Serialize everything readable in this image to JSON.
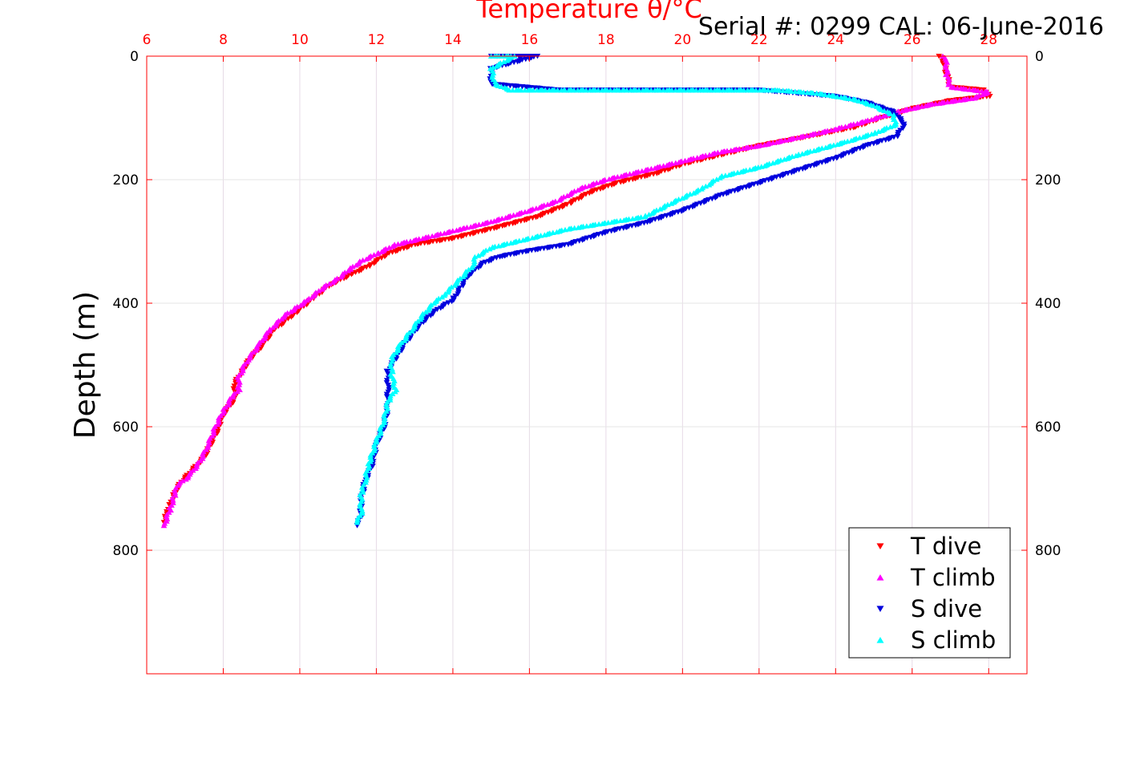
{
  "chart_data": {
    "type": "scatter",
    "title": "Temperature θ/°C",
    "annotation": "Serial #: 0299 CAL: 06-June-2016",
    "xlabel": "Temperature θ/°C",
    "ylabel": "Depth (m)",
    "xlim": [
      6,
      29
    ],
    "ylim": [
      0,
      1000
    ],
    "y_reversed": true,
    "x_ticks": [
      "6",
      "8",
      "10",
      "12",
      "14",
      "16",
      "18",
      "20",
      "22",
      "24",
      "26",
      "28"
    ],
    "y_ticks": [
      "0",
      "200",
      "400",
      "600",
      "800"
    ],
    "grid": true,
    "legend_position": "bottom-right",
    "series": [
      {
        "name": "T dive",
        "marker": "triangle-down",
        "color": "#ff0000",
        "points": [
          [
            26.7,
            0
          ],
          [
            26.8,
            5
          ],
          [
            26.9,
            30
          ],
          [
            27.0,
            50
          ],
          [
            27.9,
            55
          ],
          [
            28.0,
            65
          ],
          [
            27.0,
            72
          ],
          [
            26.0,
            85
          ],
          [
            25.2,
            100
          ],
          [
            24.5,
            115
          ],
          [
            23.3,
            130
          ],
          [
            22.0,
            145
          ],
          [
            21.0,
            160
          ],
          [
            20.0,
            175
          ],
          [
            19.3,
            190
          ],
          [
            18.3,
            205
          ],
          [
            17.6,
            220
          ],
          [
            17.0,
            240
          ],
          [
            16.2,
            260
          ],
          [
            15.3,
            275
          ],
          [
            14.0,
            295
          ],
          [
            13.0,
            305
          ],
          [
            12.3,
            320
          ],
          [
            11.8,
            340
          ],
          [
            11.3,
            355
          ],
          [
            10.8,
            370
          ],
          [
            10.3,
            395
          ],
          [
            9.8,
            420
          ],
          [
            9.3,
            445
          ],
          [
            9.0,
            470
          ],
          [
            8.7,
            490
          ],
          [
            8.5,
            510
          ],
          [
            8.3,
            530
          ],
          [
            8.3,
            555
          ],
          [
            8.0,
            580
          ],
          [
            7.9,
            600
          ],
          [
            7.7,
            625
          ],
          [
            7.5,
            650
          ],
          [
            7.2,
            670
          ],
          [
            6.9,
            690
          ],
          [
            6.7,
            710
          ],
          [
            6.6,
            730
          ],
          [
            6.5,
            745
          ],
          [
            6.45,
            755
          ]
        ]
      },
      {
        "name": "T climb",
        "marker": "triangle-up",
        "color": "#ff00ff",
        "points": [
          [
            26.8,
            0
          ],
          [
            26.9,
            10
          ],
          [
            26.9,
            30
          ],
          [
            27.0,
            50
          ],
          [
            28.0,
            58
          ],
          [
            27.6,
            68
          ],
          [
            26.5,
            78
          ],
          [
            25.6,
            90
          ],
          [
            24.8,
            105
          ],
          [
            24.0,
            118
          ],
          [
            23.0,
            132
          ],
          [
            22.0,
            145
          ],
          [
            21.0,
            155
          ],
          [
            20.0,
            170
          ],
          [
            19.0,
            185
          ],
          [
            18.0,
            200
          ],
          [
            17.3,
            215
          ],
          [
            16.7,
            235
          ],
          [
            16.0,
            250
          ],
          [
            15.0,
            268
          ],
          [
            14.2,
            280
          ],
          [
            13.2,
            295
          ],
          [
            12.5,
            305
          ],
          [
            12.0,
            320
          ],
          [
            11.6,
            332
          ],
          [
            11.3,
            345
          ],
          [
            11.0,
            360
          ],
          [
            10.6,
            375
          ],
          [
            10.2,
            395
          ],
          [
            9.6,
            420
          ],
          [
            9.2,
            445
          ],
          [
            8.9,
            470
          ],
          [
            8.6,
            495
          ],
          [
            8.4,
            520
          ],
          [
            8.4,
            540
          ],
          [
            8.2,
            555
          ],
          [
            8.0,
            575
          ],
          [
            7.8,
            600
          ],
          [
            7.6,
            630
          ],
          [
            7.4,
            655
          ],
          [
            7.1,
            680
          ],
          [
            6.8,
            695
          ],
          [
            6.7,
            715
          ],
          [
            6.6,
            735
          ],
          [
            6.45,
            760
          ]
        ]
      },
      {
        "name": "S dive",
        "marker": "triangle-down",
        "color": "#0000dd",
        "points": [
          [
            15.0,
            0
          ],
          [
            16.2,
            0
          ],
          [
            15.0,
            20
          ],
          [
            15.0,
            45
          ],
          [
            16.8,
            55
          ],
          [
            18.0,
            55
          ],
          [
            20.5,
            55
          ],
          [
            22.0,
            55
          ],
          [
            24.0,
            65
          ],
          [
            24.8,
            75
          ],
          [
            25.5,
            90
          ],
          [
            25.8,
            110
          ],
          [
            25.6,
            130
          ],
          [
            24.8,
            145
          ],
          [
            24.0,
            165
          ],
          [
            23.0,
            185
          ],
          [
            22.0,
            205
          ],
          [
            21.0,
            225
          ],
          [
            20.0,
            250
          ],
          [
            19.0,
            270
          ],
          [
            18.0,
            285
          ],
          [
            17.0,
            305
          ],
          [
            16.0,
            315
          ],
          [
            15.2,
            325
          ],
          [
            14.8,
            335
          ],
          [
            14.4,
            355
          ],
          [
            14.2,
            375
          ],
          [
            14.0,
            395
          ],
          [
            13.6,
            410
          ],
          [
            13.3,
            425
          ],
          [
            13.0,
            445
          ],
          [
            12.7,
            470
          ],
          [
            12.5,
            490
          ],
          [
            12.3,
            510
          ],
          [
            12.3,
            540
          ],
          [
            12.3,
            570
          ],
          [
            12.2,
            600
          ],
          [
            12.0,
            630
          ],
          [
            11.9,
            660
          ],
          [
            11.7,
            690
          ],
          [
            11.6,
            720
          ],
          [
            11.6,
            745
          ],
          [
            11.5,
            760
          ]
        ]
      },
      {
        "name": "S climb",
        "marker": "triangle-up",
        "color": "#00ffff",
        "points": [
          [
            15.0,
            0
          ],
          [
            15.6,
            0
          ],
          [
            15.0,
            20
          ],
          [
            15.1,
            45
          ],
          [
            15.5,
            55
          ],
          [
            17.0,
            55
          ],
          [
            18.5,
            55
          ],
          [
            20.5,
            55
          ],
          [
            22.5,
            55
          ],
          [
            23.5,
            60
          ],
          [
            24.5,
            70
          ],
          [
            25.0,
            80
          ],
          [
            25.5,
            95
          ],
          [
            25.6,
            110
          ],
          [
            25.0,
            125
          ],
          [
            24.2,
            140
          ],
          [
            23.0,
            160
          ],
          [
            22.0,
            180
          ],
          [
            21.0,
            195
          ],
          [
            20.5,
            215
          ],
          [
            19.8,
            235
          ],
          [
            19.0,
            260
          ],
          [
            18.0,
            270
          ],
          [
            17.0,
            280
          ],
          [
            16.0,
            295
          ],
          [
            15.0,
            310
          ],
          [
            14.6,
            325
          ],
          [
            14.5,
            340
          ],
          [
            14.2,
            360
          ],
          [
            13.8,
            385
          ],
          [
            13.5,
            400
          ],
          [
            13.2,
            420
          ],
          [
            12.9,
            445
          ],
          [
            12.6,
            470
          ],
          [
            12.4,
            490
          ],
          [
            12.4,
            515
          ],
          [
            12.5,
            540
          ],
          [
            12.3,
            560
          ],
          [
            12.2,
            590
          ],
          [
            12.0,
            625
          ],
          [
            11.8,
            660
          ],
          [
            11.7,
            690
          ],
          [
            11.6,
            710
          ],
          [
            11.6,
            740
          ],
          [
            11.5,
            755
          ]
        ]
      }
    ]
  }
}
